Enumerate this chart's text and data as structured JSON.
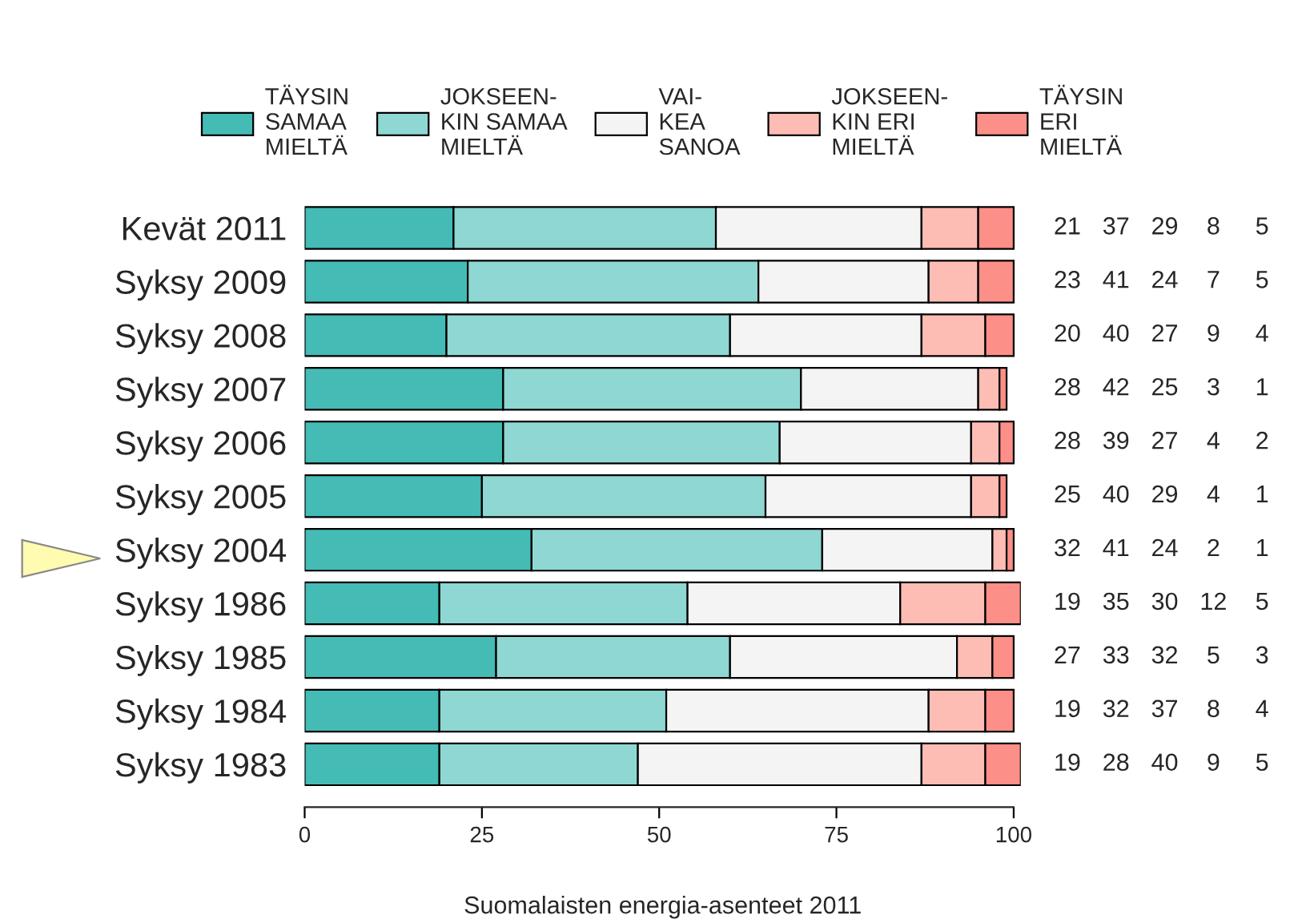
{
  "chart_data": {
    "type": "bar",
    "orientation": "horizontal",
    "stacked": true,
    "xlabel": "Suomalaisten energia-asenteet 2011",
    "categories": [
      "Kevät 2011",
      "Syksy 2009",
      "Syksy 2008",
      "Syksy 2007",
      "Syksy 2006",
      "Syksy 2005",
      "Syksy 2004",
      "Syksy 1986",
      "Syksy 1985",
      "Syksy 1984",
      "Syksy 1983"
    ],
    "series": [
      {
        "name": "TÄYSIN\nSAMAA\nMIELTÄ",
        "color": "#45bbb5",
        "values": [
          21,
          23,
          20,
          28,
          28,
          25,
          32,
          19,
          27,
          19,
          19
        ]
      },
      {
        "name": "JOKSEEN-\nKIN SAMAA\nMIELTÄ",
        "color": "#8ed7d2",
        "values": [
          37,
          41,
          40,
          42,
          39,
          40,
          41,
          35,
          33,
          32,
          28
        ]
      },
      {
        "name": "VAI-\nKEA\nSANOA",
        "color": "#f4f4f4",
        "values": [
          29,
          24,
          27,
          25,
          27,
          29,
          24,
          30,
          32,
          37,
          40
        ]
      },
      {
        "name": "JOKSEEN-\nKIN ERI\nMIELTÄ",
        "color": "#fdbcb4",
        "values": [
          8,
          7,
          9,
          3,
          4,
          4,
          2,
          12,
          5,
          8,
          9
        ]
      },
      {
        "name": "TÄYSIN\nERI\nMIELTÄ",
        "color": "#fc8f87",
        "values": [
          5,
          5,
          4,
          1,
          2,
          1,
          1,
          5,
          3,
          4,
          5
        ]
      }
    ],
    "xlim": [
      0,
      101
    ],
    "xticks": [
      0,
      25,
      50,
      75,
      100
    ],
    "data_labels": true,
    "legend": "top",
    "grid": false
  }
}
